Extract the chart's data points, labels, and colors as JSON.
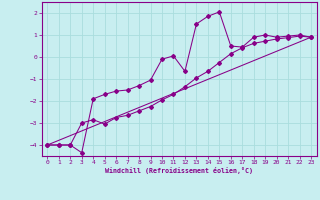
{
  "xlabel": "Windchill (Refroidissement éolien,°C)",
  "bg_color": "#c8eef0",
  "grid_color": "#aadddd",
  "line_color": "#880088",
  "xlim": [
    -0.5,
    23.5
  ],
  "ylim": [
    -4.5,
    2.5
  ],
  "xticks": [
    0,
    1,
    2,
    3,
    4,
    5,
    6,
    7,
    8,
    9,
    10,
    11,
    12,
    13,
    14,
    15,
    16,
    17,
    18,
    19,
    20,
    21,
    22,
    23
  ],
  "yticks": [
    -4,
    -3,
    -2,
    -1,
    0,
    1,
    2
  ],
  "series1_x": [
    0,
    1,
    2,
    3,
    4,
    5,
    6,
    7,
    8,
    9,
    10,
    11,
    12,
    13,
    14,
    15,
    16,
    17,
    18,
    19,
    20,
    21,
    22,
    23
  ],
  "series1_y": [
    -4.0,
    -4.0,
    -4.0,
    -4.35,
    -1.9,
    -1.7,
    -1.55,
    -1.5,
    -1.3,
    -1.05,
    -0.1,
    0.05,
    -0.65,
    1.5,
    1.85,
    2.05,
    0.5,
    0.45,
    0.9,
    1.0,
    0.9,
    0.95,
    1.0,
    0.9
  ],
  "series2_x": [
    0,
    1,
    2,
    3,
    4,
    5,
    6,
    7,
    8,
    9,
    10,
    11,
    12,
    13,
    14,
    15,
    16,
    17,
    18,
    19,
    20,
    21,
    22,
    23
  ],
  "series2_y": [
    -4.0,
    -4.0,
    -4.0,
    -3.0,
    -2.85,
    -3.05,
    -2.75,
    -2.65,
    -2.45,
    -2.25,
    -1.95,
    -1.7,
    -1.35,
    -0.95,
    -0.65,
    -0.25,
    0.15,
    0.42,
    0.62,
    0.72,
    0.82,
    0.88,
    0.95,
    0.9
  ],
  "series3_x": [
    0,
    23
  ],
  "series3_y": [
    -4.0,
    0.9
  ]
}
